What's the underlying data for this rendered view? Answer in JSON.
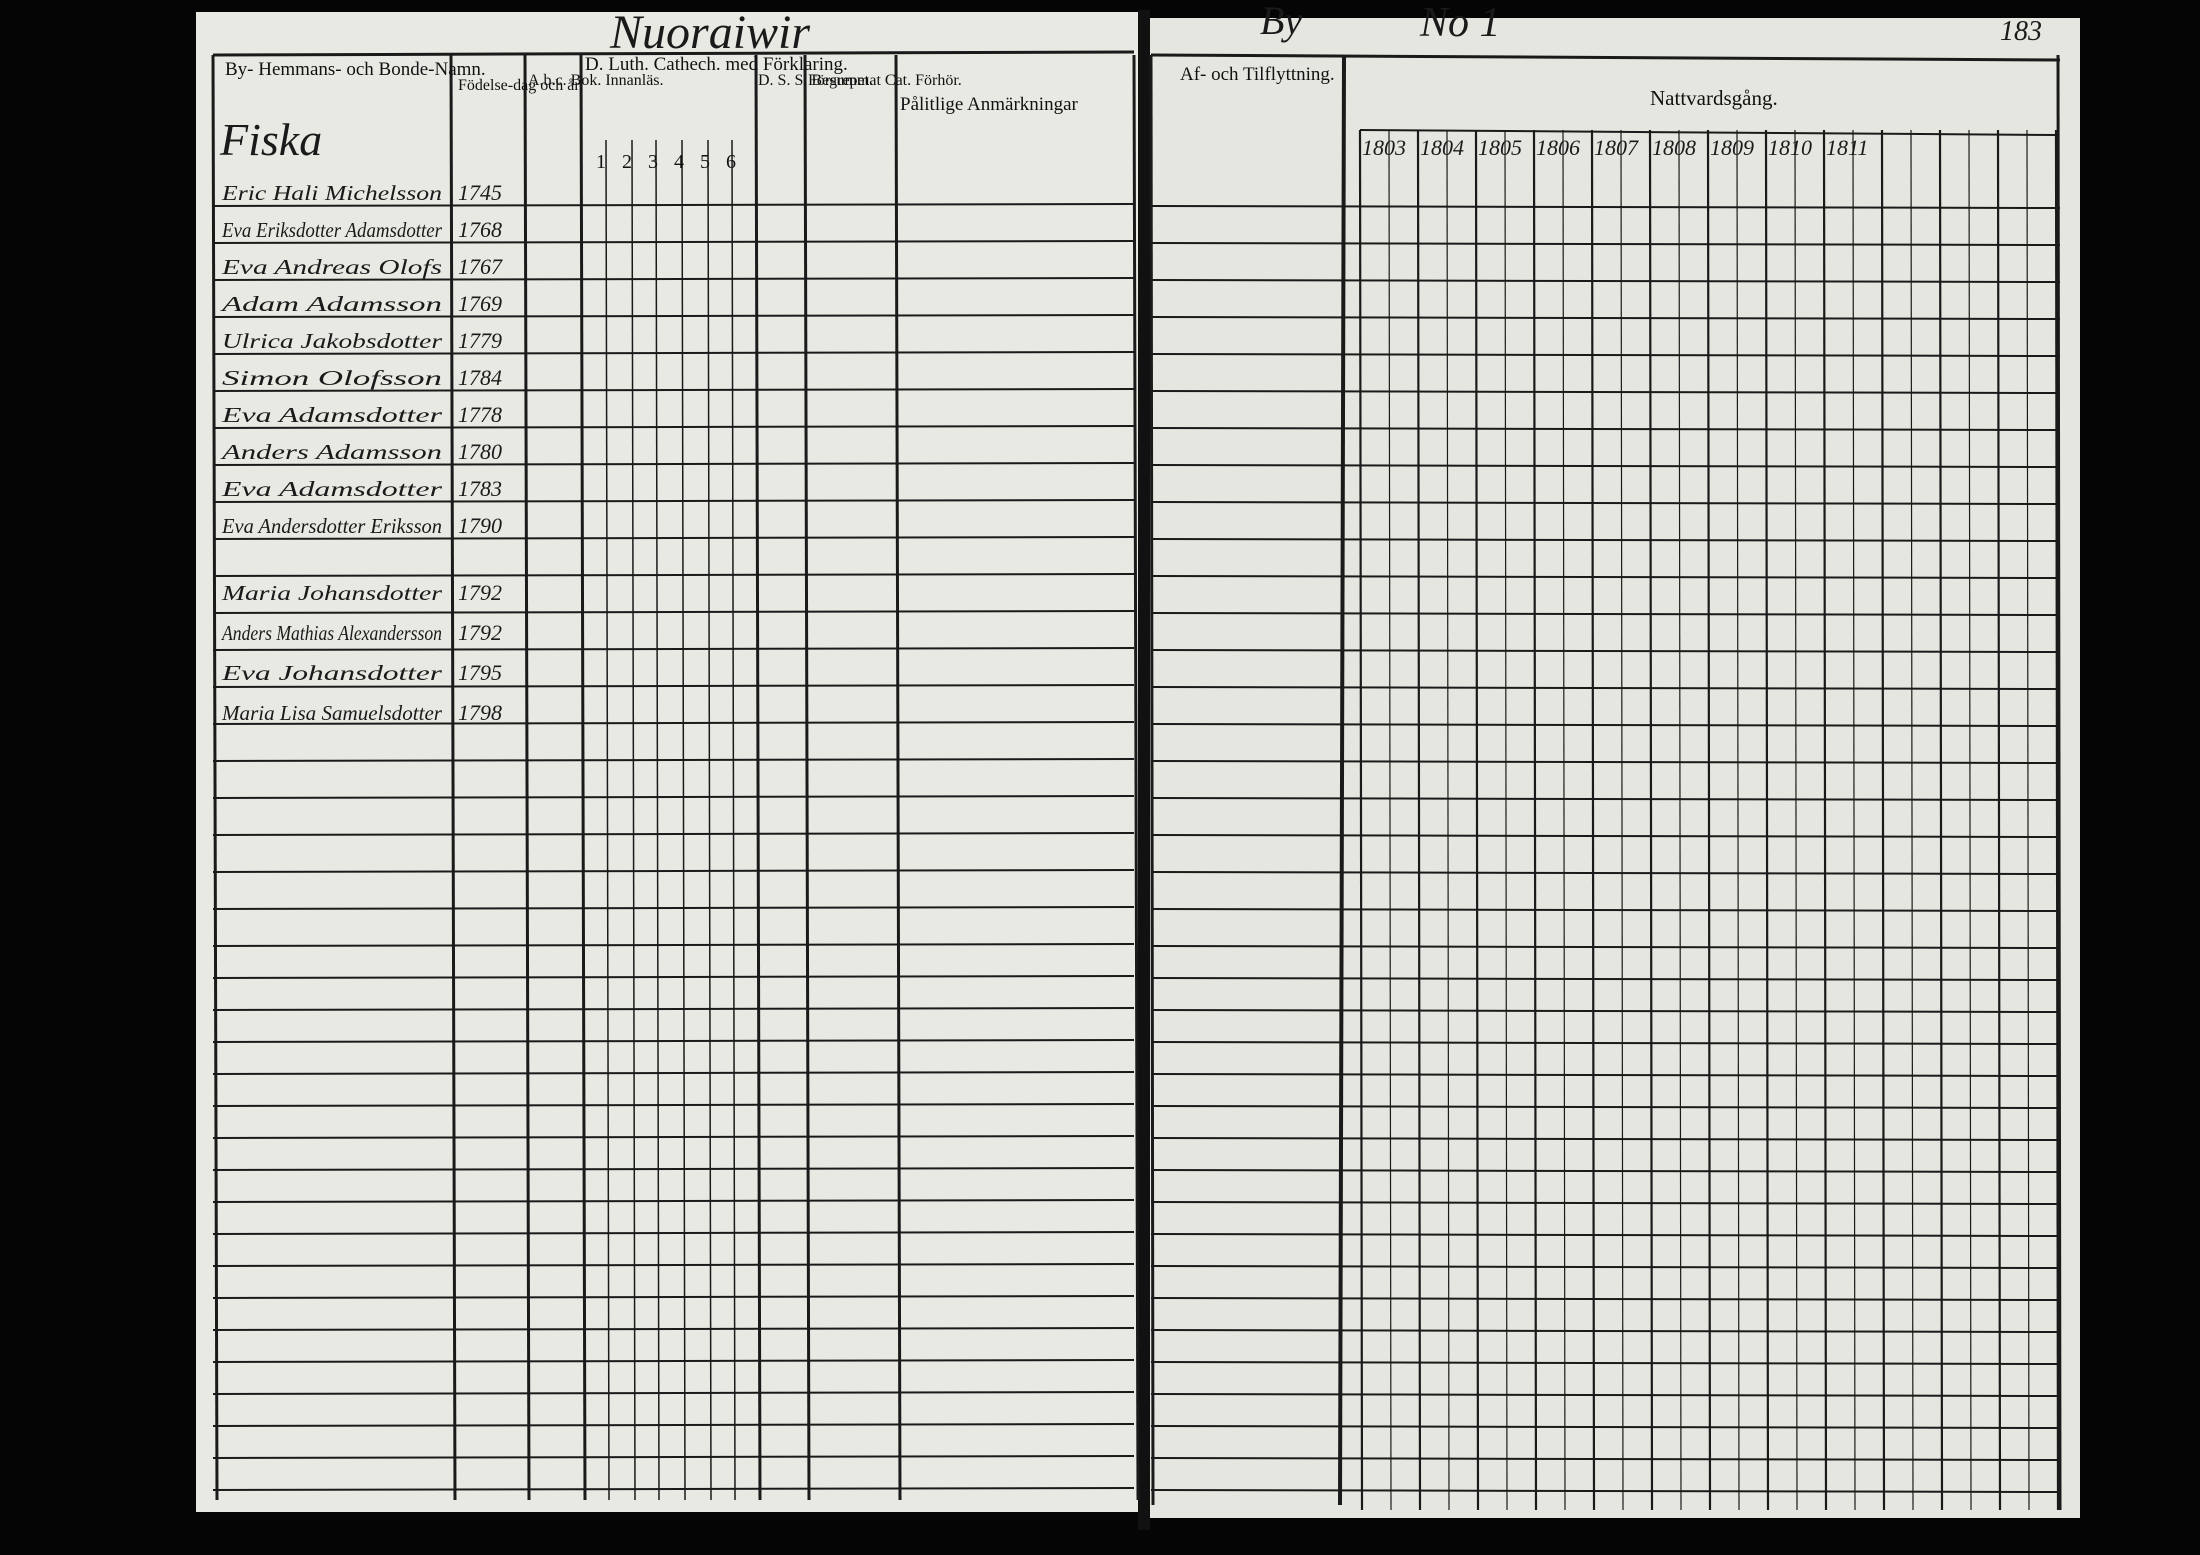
{
  "header": {
    "title": "Nuoraiwir",
    "village": "By",
    "number": "No 1",
    "page": "183"
  },
  "left_columns": [
    "By- Hemmans- och Bonde-Namn.",
    "Födelse-dag och år.",
    "A.b.c. Bok. Innanläs.",
    "D. Luth. Cathech. med Förklaring.",
    "D. S. S. Begrepet.",
    "Försummat Cat. Förhör.",
    "Pålitlige Anmärkningar"
  ],
  "catechism_parts": [
    "1",
    "2",
    "3",
    "4",
    "5",
    "6"
  ],
  "section": "Fiska",
  "right_columns": [
    "Af- och Tilflyttning.",
    "Nattvardsgång."
  ],
  "years": [
    "1803",
    "1804",
    "1805",
    "1806",
    "1807",
    "1808",
    "1809",
    "1810",
    "1811"
  ],
  "rows": [
    {
      "name": "Eric Hali Michelsson",
      "born": "1745"
    },
    {
      "name": "Eva Eriksdotter Adamsdotter",
      "born": "1768"
    },
    {
      "name": "Eva Andreas Olofs",
      "born": "1767"
    },
    {
      "name": "Adam Adamsson",
      "born": "1769"
    },
    {
      "name": "Ulrica Jakobsdotter",
      "born": "1779"
    },
    {
      "name": "Simon Olofsson",
      "born": "1784"
    },
    {
      "name": "Eva Adamsdotter",
      "born": "1778"
    },
    {
      "name": "Anders Adamsson",
      "born": "1780"
    },
    {
      "name": "Eva Adamsdotter",
      "born": "1783"
    },
    {
      "name": "Eva Andersdotter Eriksson",
      "born": "1790"
    },
    {
      "name": "Maria Johansdotter",
      "born": "1792"
    },
    {
      "name": "Anders Mathias Alexandersson",
      "born": "1792"
    },
    {
      "name": "Eva Johansdotter",
      "born": "1795"
    },
    {
      "name": "Maria Lisa Samuelsdotter",
      "born": "1798"
    }
  ]
}
